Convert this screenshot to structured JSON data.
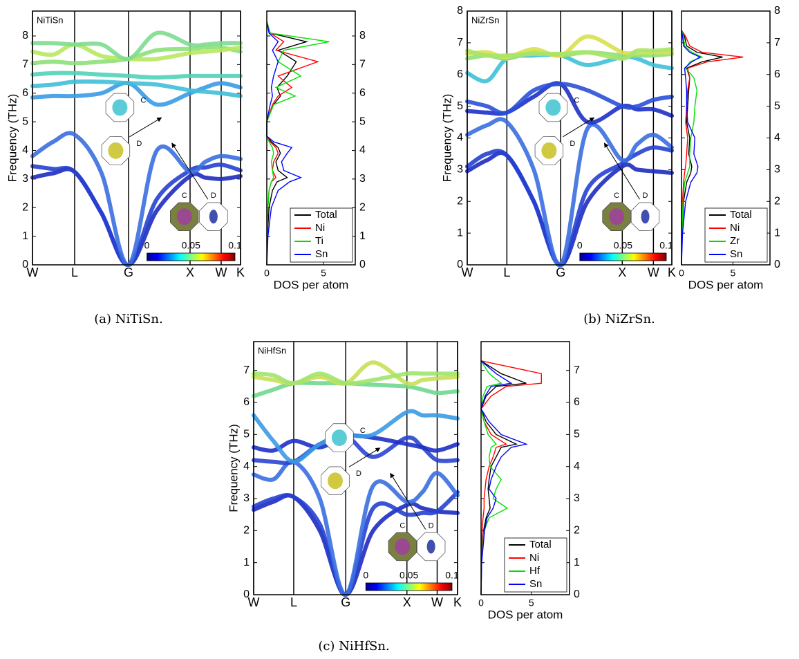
{
  "chart_data": [
    {
      "type": "line",
      "title": "NiTiSn",
      "caption": "(a) NiTiSn.",
      "ylabel": "Frequency (THz)",
      "x": [
        0,
        3,
        6.1,
        10,
        13.9,
        18,
        22.8,
        25,
        27.3,
        30.1
      ],
      "xlim": [
        0,
        30.1
      ],
      "ylim": [
        0,
        8.87
      ],
      "xticks": [
        {
          "value": 0,
          "label": "W"
        },
        {
          "value": 6.1,
          "label": "L"
        },
        {
          "value": 13.9,
          "label": "G"
        },
        {
          "value": 22.8,
          "label": "X"
        },
        {
          "value": 27.3,
          "label": "W"
        },
        {
          "value": 30.1,
          "label": "K"
        }
      ],
      "yticks": [
        0,
        1,
        2,
        3,
        4,
        5,
        6,
        7,
        8
      ],
      "colorbar_ticks": [
        0,
        0.05,
        0.1
      ],
      "inset_labels": [
        "C",
        "D",
        "C",
        "D"
      ],
      "series": [
        {
          "color": "#1e2cc0",
          "values": [
            3.05,
            3.2,
            3.25,
            1.8,
            0,
            1.9,
            3.1,
            3.05,
            3.0,
            3.1
          ]
        },
        {
          "color": "#2640d0",
          "values": [
            3.45,
            3.35,
            3.25,
            1.8,
            0,
            2.3,
            3.3,
            3.4,
            3.5,
            3.3
          ]
        },
        {
          "color": "#3a6fe0",
          "values": [
            3.8,
            4.3,
            4.55,
            3.2,
            0,
            4.0,
            3.25,
            3.6,
            3.8,
            3.7
          ]
        },
        {
          "color": "#3a9be6",
          "values": [
            5.85,
            5.9,
            5.9,
            6.0,
            6.35,
            5.6,
            6.0,
            6.2,
            6.35,
            6.2
          ]
        },
        {
          "color": "#3fbfd8",
          "values": [
            6.25,
            6.3,
            6.4,
            6.4,
            6.35,
            6.3,
            6.1,
            6.05,
            6.0,
            5.9
          ]
        },
        {
          "color": "#50d3b8",
          "values": [
            6.65,
            6.7,
            6.7,
            6.65,
            6.6,
            6.55,
            6.6,
            6.6,
            6.6,
            6.6
          ]
        },
        {
          "color": "#8ee07a",
          "values": [
            7.05,
            7.1,
            7.05,
            7.1,
            7.2,
            7.5,
            7.55,
            7.6,
            7.6,
            7.45
          ]
        },
        {
          "color": "#b8e860",
          "values": [
            7.45,
            7.35,
            7.7,
            7.3,
            7.2,
            7.2,
            7.4,
            7.45,
            7.5,
            7.6
          ]
        },
        {
          "color": "#7fdc90",
          "values": [
            7.75,
            7.75,
            7.7,
            7.7,
            7.2,
            8.1,
            7.7,
            7.7,
            7.75,
            7.75
          ]
        }
      ]
    },
    {
      "type": "line",
      "xlabel": "DOS per atom",
      "legend": "lower right",
      "y": [
        0,
        1,
        2,
        2.6,
        2.9,
        3.05,
        3.3,
        3.6,
        3.9,
        4.1,
        4.3,
        4.5,
        5,
        5.6,
        5.9,
        6.2,
        6.6,
        7.1,
        7.5,
        7.8,
        8.1,
        8.5
      ],
      "xlim": [
        0,
        7.8
      ],
      "ylim": [
        0,
        8.87
      ],
      "xticks": [
        0,
        5
      ],
      "yticks": [
        0,
        1,
        2,
        3,
        4,
        5,
        6,
        7,
        8
      ],
      "series": [
        {
          "name": "Total",
          "color": "#000000",
          "values": [
            0,
            0.05,
            0.2,
            0.5,
            0.9,
            1.8,
            1.0,
            0.8,
            1.2,
            1.0,
            0.4,
            0,
            0,
            0.6,
            1.2,
            0.9,
            1.8,
            2.6,
            1.0,
            3.5,
            0.3,
            0
          ]
        },
        {
          "name": "Ni",
          "color": "#ff0000",
          "values": [
            0,
            0.02,
            0.1,
            0.2,
            0.4,
            0.8,
            0.5,
            0.6,
            1.0,
            0.8,
            0.3,
            0,
            0,
            0.5,
            1.0,
            2.2,
            1.0,
            4.5,
            0.8,
            1.5,
            0.3,
            0
          ]
        },
        {
          "name": "Ti",
          "color": "#00e000",
          "values": [
            0,
            0.03,
            0.1,
            0.2,
            0.4,
            0.6,
            0.5,
            0.4,
            0.6,
            0.5,
            0.2,
            0,
            0,
            0.6,
            2.5,
            0.8,
            3.0,
            1.0,
            1.5,
            5.5,
            0.3,
            0
          ]
        },
        {
          "name": "Sn",
          "color": "#0000ff",
          "values": [
            0,
            0.1,
            0.4,
            1.0,
            2.0,
            3.0,
            1.5,
            1.3,
            1.8,
            2.2,
            0.6,
            0,
            0,
            0.3,
            0.5,
            0.4,
            0.6,
            1.0,
            0.5,
            1.0,
            0.2,
            0
          ]
        }
      ]
    },
    {
      "type": "line",
      "title": "NiZrSn",
      "caption": "(b) NiZrSn.",
      "ylabel": "Frequency (THz)",
      "x": [
        0,
        2.8,
        5.6,
        9.4,
        13.2,
        17,
        21.9,
        24,
        26.3,
        28.9
      ],
      "xlim": [
        0,
        28.9
      ],
      "ylim": [
        0,
        8
      ],
      "xticks": [
        {
          "value": 0,
          "label": "W"
        },
        {
          "value": 5.6,
          "label": "L"
        },
        {
          "value": 13.2,
          "label": "G"
        },
        {
          "value": 21.9,
          "label": "X"
        },
        {
          "value": 26.3,
          "label": "W"
        },
        {
          "value": 28.9,
          "label": "K"
        }
      ],
      "yticks": [
        0,
        1,
        2,
        3,
        4,
        5,
        6,
        7,
        8
      ],
      "colorbar_ticks": [
        0,
        0.05,
        0.1
      ],
      "inset_labels": [
        "C",
        "D",
        "C",
        "D"
      ],
      "series": [
        {
          "color": "#1e2cc0",
          "values": [
            2.95,
            3.3,
            3.45,
            2.0,
            0,
            2.0,
            3.1,
            3.0,
            2.95,
            2.9
          ]
        },
        {
          "color": "#2640d0",
          "values": [
            3.1,
            3.5,
            3.45,
            2.0,
            0,
            2.4,
            3.2,
            3.5,
            3.7,
            3.6
          ]
        },
        {
          "color": "#3a6fe0",
          "values": [
            4.1,
            4.4,
            4.5,
            3.0,
            0,
            4.3,
            3.3,
            3.8,
            4.1,
            3.7
          ]
        },
        {
          "color": "#1e30c8",
          "values": [
            4.85,
            4.8,
            4.8,
            5.3,
            5.7,
            4.5,
            5.0,
            4.9,
            4.9,
            4.7
          ]
        },
        {
          "color": "#2a50d8",
          "values": [
            5.15,
            5.0,
            4.8,
            5.5,
            5.7,
            5.5,
            5.0,
            5.0,
            5.2,
            5.3
          ]
        },
        {
          "color": "#40c0d8",
          "values": [
            6.05,
            5.8,
            6.5,
            6.6,
            6.6,
            6.3,
            6.55,
            6.5,
            6.3,
            6.2
          ]
        },
        {
          "color": "#8ee07a",
          "values": [
            6.5,
            6.6,
            6.5,
            6.7,
            6.6,
            6.7,
            6.6,
            6.6,
            6.6,
            6.65
          ]
        },
        {
          "color": "#d8e050",
          "values": [
            6.65,
            6.7,
            6.55,
            6.8,
            6.6,
            7.2,
            6.7,
            6.7,
            6.7,
            6.7
          ]
        },
        {
          "color": "#a8e468",
          "values": [
            6.75,
            6.6,
            6.6,
            6.65,
            6.65,
            6.7,
            6.5,
            6.75,
            6.75,
            6.8
          ]
        }
      ]
    },
    {
      "type": "line",
      "xlabel": "DOS per atom",
      "legend": "lower right",
      "y": [
        0,
        1,
        2,
        2.6,
        2.9,
        3.1,
        3.5,
        4,
        4.5,
        5,
        5.5,
        5.9,
        6.2,
        6.4,
        6.55,
        6.7,
        6.9,
        7.2,
        7.4
      ],
      "xlim": [
        0,
        8.6
      ],
      "ylim": [
        0,
        8
      ],
      "xticks": [
        0,
        5
      ],
      "yticks": [
        0,
        1,
        2,
        3,
        4,
        5,
        6,
        7,
        8
      ],
      "series": [
        {
          "name": "Total",
          "color": "#000000",
          "values": [
            0,
            0.05,
            0.2,
            0.5,
            0.9,
            1.0,
            0.7,
            0.8,
            0.5,
            0.6,
            0.7,
            0.8,
            0.5,
            2.0,
            4.0,
            1.5,
            0.5,
            0.3,
            0
          ]
        },
        {
          "name": "Ni",
          "color": "#ff0000",
          "values": [
            0,
            0.03,
            0.1,
            0.2,
            0.3,
            0.4,
            0.5,
            0.6,
            0.4,
            0.5,
            0.6,
            0.8,
            0.6,
            2.5,
            6.0,
            2.0,
            0.8,
            0.4,
            0
          ]
        },
        {
          "name": "Zr",
          "color": "#00e000",
          "values": [
            0,
            0.04,
            0.15,
            0.3,
            0.6,
            0.8,
            0.8,
            0.9,
            1.2,
            1.3,
            1.5,
            1.2,
            0.4,
            0.8,
            2.0,
            1.0,
            0.3,
            0.2,
            0
          ]
        },
        {
          "name": "Sn",
          "color": "#0000ff",
          "values": [
            0,
            0.1,
            0.4,
            0.9,
            1.5,
            1.6,
            1.2,
            1.3,
            0.6,
            0.5,
            0.5,
            0.4,
            0.3,
            1.0,
            1.8,
            0.8,
            0.2,
            0.1,
            0
          ]
        }
      ]
    },
    {
      "type": "line",
      "title": "NiHfSn",
      "caption": "(c) NiHfSn.",
      "ylabel": "Frequency (THz)",
      "x": [
        0,
        2.8,
        5.7,
        9.4,
        13.1,
        17,
        21.8,
        24,
        26.1,
        29.0
      ],
      "xlim": [
        0,
        29.0
      ],
      "ylim": [
        0,
        7.9
      ],
      "xticks": [
        {
          "value": 0,
          "label": "W"
        },
        {
          "value": 5.7,
          "label": "L"
        },
        {
          "value": 13.1,
          "label": "G"
        },
        {
          "value": 21.8,
          "label": "X"
        },
        {
          "value": 26.1,
          "label": "W"
        },
        {
          "value": 29.0,
          "label": "K"
        }
      ],
      "yticks": [
        0,
        1,
        2,
        3,
        4,
        5,
        6,
        7
      ],
      "colorbar_ticks": [
        0,
        0.05,
        0.1
      ],
      "inset_labels": [
        "C",
        "D",
        "C",
        "D"
      ],
      "series": [
        {
          "color": "#1e2cc0",
          "values": [
            2.65,
            2.9,
            3.05,
            2.0,
            0,
            2.0,
            2.8,
            2.7,
            2.6,
            2.55
          ]
        },
        {
          "color": "#2640d0",
          "values": [
            2.75,
            3.0,
            3.05,
            2.2,
            0,
            2.7,
            2.5,
            2.55,
            2.6,
            3.2
          ]
        },
        {
          "color": "#3a6fe0",
          "values": [
            3.75,
            3.6,
            4.15,
            3.0,
            0,
            3.4,
            2.9,
            3.2,
            3.8,
            3.1
          ]
        },
        {
          "color": "#2a44d0",
          "values": [
            4.2,
            4.15,
            4.15,
            4.7,
            4.95,
            4.3,
            4.9,
            4.6,
            4.2,
            4.2
          ]
        },
        {
          "color": "#1e30c8",
          "values": [
            4.6,
            4.5,
            4.8,
            4.6,
            4.95,
            4.9,
            4.7,
            4.6,
            4.5,
            4.7
          ]
        },
        {
          "color": "#3a9be6",
          "values": [
            5.6,
            4.8,
            4.15,
            4.7,
            4.95,
            5.0,
            5.7,
            5.6,
            5.6,
            5.5
          ]
        },
        {
          "color": "#70d890",
          "values": [
            6.2,
            6.4,
            6.6,
            6.6,
            6.6,
            6.55,
            6.5,
            6.4,
            6.3,
            6.35
          ]
        },
        {
          "color": "#c8e058",
          "values": [
            6.8,
            6.7,
            6.6,
            6.8,
            6.6,
            7.25,
            6.6,
            6.7,
            6.75,
            6.8
          ]
        },
        {
          "color": "#a0e46c",
          "values": [
            6.9,
            6.85,
            6.6,
            6.9,
            6.6,
            6.7,
            6.9,
            6.9,
            6.9,
            6.9
          ]
        }
      ]
    },
    {
      "type": "line",
      "xlabel": "DOS per atom",
      "legend": "lower right",
      "y": [
        0,
        1,
        2,
        2.4,
        2.7,
        3,
        3.3,
        3.6,
        4,
        4.3,
        4.6,
        4.7,
        5,
        5.4,
        5.8,
        6.2,
        6.5,
        6.6,
        6.9,
        7.3
      ],
      "xlim": [
        0,
        8.8
      ],
      "ylim": [
        0,
        7.9
      ],
      "xticks": [
        0,
        5
      ],
      "yticks": [
        0,
        1,
        2,
        3,
        4,
        5,
        6,
        7
      ],
      "series": [
        {
          "name": "Total",
          "color": "#000000",
          "values": [
            0,
            0.05,
            0.25,
            0.5,
            0.9,
            0.8,
            0.7,
            0.8,
            1.0,
            1.5,
            2.0,
            3.5,
            1.5,
            0.5,
            0,
            0.5,
            1.5,
            4.5,
            2.0,
            0
          ]
        },
        {
          "name": "Ni",
          "color": "#ff0000",
          "values": [
            0,
            0.02,
            0.1,
            0.2,
            0.3,
            0.3,
            0.4,
            0.5,
            0.8,
            1.2,
            1.5,
            2.5,
            1.0,
            0.3,
            0,
            1.0,
            2.5,
            6.0,
            6.0,
            0
          ]
        },
        {
          "name": "Hf",
          "color": "#00e000",
          "values": [
            0,
            0.05,
            0.3,
            0.8,
            2.6,
            1.2,
            1.5,
            2.0,
            0.9,
            0.8,
            1.0,
            1.5,
            0.7,
            0.3,
            0,
            0.2,
            0.6,
            2.0,
            0.8,
            0
          ]
        },
        {
          "name": "Sn",
          "color": "#0000ff",
          "values": [
            0,
            0.06,
            0.35,
            0.6,
            1.2,
            1.5,
            0.8,
            1.0,
            1.5,
            2.0,
            3.0,
            4.5,
            2.0,
            0.8,
            0,
            0.4,
            1.0,
            3.0,
            1.5,
            0
          ]
        }
      ]
    }
  ]
}
